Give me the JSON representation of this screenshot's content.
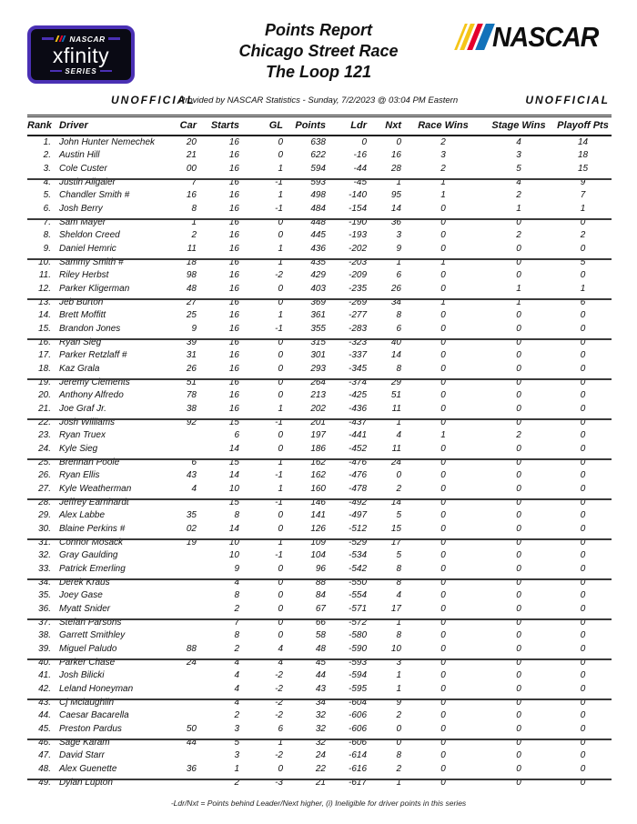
{
  "header": {
    "series_logo": {
      "nascar": "NASCAR",
      "brand": "xfinity",
      "series": "SERIES"
    },
    "title_lines": [
      "Points Report",
      "Chicago Street Race",
      "The Loop 121"
    ],
    "nascar_logo_text": "NASCAR"
  },
  "subheader": {
    "unofficial_left": "UNOFFICIAL",
    "provided_by": "Provided by NASCAR Statistics - Sunday, 7/2/2023 @ 03:04 PM Eastern",
    "unofficial_right": "UNOFFICIAL"
  },
  "table": {
    "columns": [
      "Rank",
      "Driver",
      "Car",
      "Starts",
      "GL",
      "Points",
      "Ldr",
      "Nxt",
      "Race Wins",
      "Stage Wins",
      "Playoff Pts"
    ],
    "rows": [
      [
        "1.",
        "John Hunter Nemechek",
        "20",
        "16",
        "0",
        "638",
        "0",
        "0",
        "2",
        "4",
        "14"
      ],
      [
        "2.",
        "Austin Hill",
        "21",
        "16",
        "0",
        "622",
        "-16",
        "16",
        "3",
        "3",
        "18"
      ],
      [
        "3.",
        "Cole Custer",
        "00",
        "16",
        "1",
        "594",
        "-44",
        "28",
        "2",
        "5",
        "15"
      ],
      [
        "4.",
        "Justin Allgaier",
        "7",
        "16",
        "-1",
        "593",
        "-45",
        "1",
        "1",
        "4",
        "9"
      ],
      [
        "5.",
        "Chandler Smith #",
        "16",
        "16",
        "1",
        "498",
        "-140",
        "95",
        "1",
        "2",
        "7"
      ],
      [
        "6.",
        "Josh Berry",
        "8",
        "16",
        "-1",
        "484",
        "-154",
        "14",
        "0",
        "1",
        "1"
      ],
      [
        "7.",
        "Sam Mayer",
        "1",
        "16",
        "0",
        "448",
        "-190",
        "36",
        "0",
        "0",
        "0"
      ],
      [
        "8.",
        "Sheldon Creed",
        "2",
        "16",
        "0",
        "445",
        "-193",
        "3",
        "0",
        "2",
        "2"
      ],
      [
        "9.",
        "Daniel Hemric",
        "11",
        "16",
        "1",
        "436",
        "-202",
        "9",
        "0",
        "0",
        "0"
      ],
      [
        "10.",
        "Sammy Smith #",
        "18",
        "16",
        "1",
        "435",
        "-203",
        "1",
        "1",
        "0",
        "5"
      ],
      [
        "11.",
        "Riley Herbst",
        "98",
        "16",
        "-2",
        "429",
        "-209",
        "6",
        "0",
        "0",
        "0"
      ],
      [
        "12.",
        "Parker Kligerman",
        "48",
        "16",
        "0",
        "403",
        "-235",
        "26",
        "0",
        "1",
        "1"
      ],
      [
        "13.",
        "Jeb Burton",
        "27",
        "16",
        "0",
        "369",
        "-269",
        "34",
        "1",
        "1",
        "6"
      ],
      [
        "14.",
        "Brett Moffitt",
        "25",
        "16",
        "1",
        "361",
        "-277",
        "8",
        "0",
        "0",
        "0"
      ],
      [
        "15.",
        "Brandon Jones",
        "9",
        "16",
        "-1",
        "355",
        "-283",
        "6",
        "0",
        "0",
        "0"
      ],
      [
        "16.",
        "Ryan Sieg",
        "39",
        "16",
        "0",
        "315",
        "-323",
        "40",
        "0",
        "0",
        "0"
      ],
      [
        "17.",
        "Parker Retzlaff #",
        "31",
        "16",
        "0",
        "301",
        "-337",
        "14",
        "0",
        "0",
        "0"
      ],
      [
        "18.",
        "Kaz Grala",
        "26",
        "16",
        "0",
        "293",
        "-345",
        "8",
        "0",
        "0",
        "0"
      ],
      [
        "19.",
        "Jeremy Clements",
        "51",
        "16",
        "0",
        "264",
        "-374",
        "29",
        "0",
        "0",
        "0"
      ],
      [
        "20.",
        "Anthony Alfredo",
        "78",
        "16",
        "0",
        "213",
        "-425",
        "51",
        "0",
        "0",
        "0"
      ],
      [
        "21.",
        "Joe Graf Jr.",
        "38",
        "16",
        "1",
        "202",
        "-436",
        "11",
        "0",
        "0",
        "0"
      ],
      [
        "22.",
        "Josh Williams",
        "92",
        "15",
        "-1",
        "201",
        "-437",
        "1",
        "0",
        "0",
        "0"
      ],
      [
        "23.",
        "Ryan Truex",
        "",
        "6",
        "0",
        "197",
        "-441",
        "4",
        "1",
        "2",
        "0"
      ],
      [
        "24.",
        "Kyle Sieg",
        "",
        "14",
        "0",
        "186",
        "-452",
        "11",
        "0",
        "0",
        "0"
      ],
      [
        "25.",
        "Brennan Poole",
        "6",
        "15",
        "1",
        "162",
        "-476",
        "24",
        "0",
        "0",
        "0"
      ],
      [
        "26.",
        "Ryan Ellis",
        "43",
        "14",
        "-1",
        "162",
        "-476",
        "0",
        "0",
        "0",
        "0"
      ],
      [
        "27.",
        "Kyle Weatherman",
        "4",
        "10",
        "1",
        "160",
        "-478",
        "2",
        "0",
        "0",
        "0"
      ],
      [
        "28.",
        "Jeffrey Earnhardt",
        "",
        "15",
        "-1",
        "146",
        "-492",
        "14",
        "0",
        "0",
        "0"
      ],
      [
        "29.",
        "Alex Labbe",
        "35",
        "8",
        "0",
        "141",
        "-497",
        "5",
        "0",
        "0",
        "0"
      ],
      [
        "30.",
        "Blaine Perkins #",
        "02",
        "14",
        "0",
        "126",
        "-512",
        "15",
        "0",
        "0",
        "0"
      ],
      [
        "31.",
        "Connor Mosack",
        "19",
        "10",
        "1",
        "109",
        "-529",
        "17",
        "0",
        "0",
        "0"
      ],
      [
        "32.",
        "Gray Gaulding",
        "",
        "10",
        "-1",
        "104",
        "-534",
        "5",
        "0",
        "0",
        "0"
      ],
      [
        "33.",
        "Patrick Emerling",
        "",
        "9",
        "0",
        "96",
        "-542",
        "8",
        "0",
        "0",
        "0"
      ],
      [
        "34.",
        "Derek Kraus",
        "",
        "4",
        "0",
        "88",
        "-550",
        "8",
        "0",
        "0",
        "0"
      ],
      [
        "35.",
        "Joey Gase",
        "",
        "8",
        "0",
        "84",
        "-554",
        "4",
        "0",
        "0",
        "0"
      ],
      [
        "36.",
        "Myatt Snider",
        "",
        "2",
        "0",
        "67",
        "-571",
        "17",
        "0",
        "0",
        "0"
      ],
      [
        "37.",
        "Stefan Parsons",
        "",
        "7",
        "0",
        "66",
        "-572",
        "1",
        "0",
        "0",
        "0"
      ],
      [
        "38.",
        "Garrett Smithley",
        "",
        "8",
        "0",
        "58",
        "-580",
        "8",
        "0",
        "0",
        "0"
      ],
      [
        "39.",
        "Miguel Paludo",
        "88",
        "2",
        "4",
        "48",
        "-590",
        "10",
        "0",
        "0",
        "0"
      ],
      [
        "40.",
        "Parker Chase",
        "24",
        "4",
        "4",
        "45",
        "-593",
        "3",
        "0",
        "0",
        "0"
      ],
      [
        "41.",
        "Josh Bilicki",
        "",
        "4",
        "-2",
        "44",
        "-594",
        "1",
        "0",
        "0",
        "0"
      ],
      [
        "42.",
        "Leland Honeyman",
        "",
        "4",
        "-2",
        "43",
        "-595",
        "1",
        "0",
        "0",
        "0"
      ],
      [
        "43.",
        "Cj Mclaughlin",
        "",
        "4",
        "-2",
        "34",
        "-604",
        "9",
        "0",
        "0",
        "0"
      ],
      [
        "44.",
        "Caesar Bacarella",
        "",
        "2",
        "-2",
        "32",
        "-606",
        "2",
        "0",
        "0",
        "0"
      ],
      [
        "45.",
        "Preston Pardus",
        "50",
        "3",
        "6",
        "32",
        "-606",
        "0",
        "0",
        "0",
        "0"
      ],
      [
        "46.",
        "Sage Karam",
        "44",
        "5",
        "1",
        "32",
        "-606",
        "0",
        "0",
        "0",
        "0"
      ],
      [
        "47.",
        "David Starr",
        "",
        "3",
        "-2",
        "24",
        "-614",
        "8",
        "0",
        "0",
        "0"
      ],
      [
        "48.",
        "Alex Guenette",
        "36",
        "1",
        "0",
        "22",
        "-616",
        "2",
        "0",
        "0",
        "0"
      ],
      [
        "49.",
        "Dylan Lupton",
        "",
        "2",
        "-3",
        "21",
        "-617",
        "1",
        "0",
        "0",
        "0"
      ]
    ]
  },
  "footer": {
    "note": "-Ldr/Nxt = Points behind Leader/Next higher, (i) Ineligible for driver points in this series"
  },
  "colors": {
    "accent_purple": "#4a30b4",
    "stripe_yellow": "#f5c518",
    "stripe_red": "#e4002b",
    "stripe_blue": "#1272ba",
    "text": "#111111"
  }
}
